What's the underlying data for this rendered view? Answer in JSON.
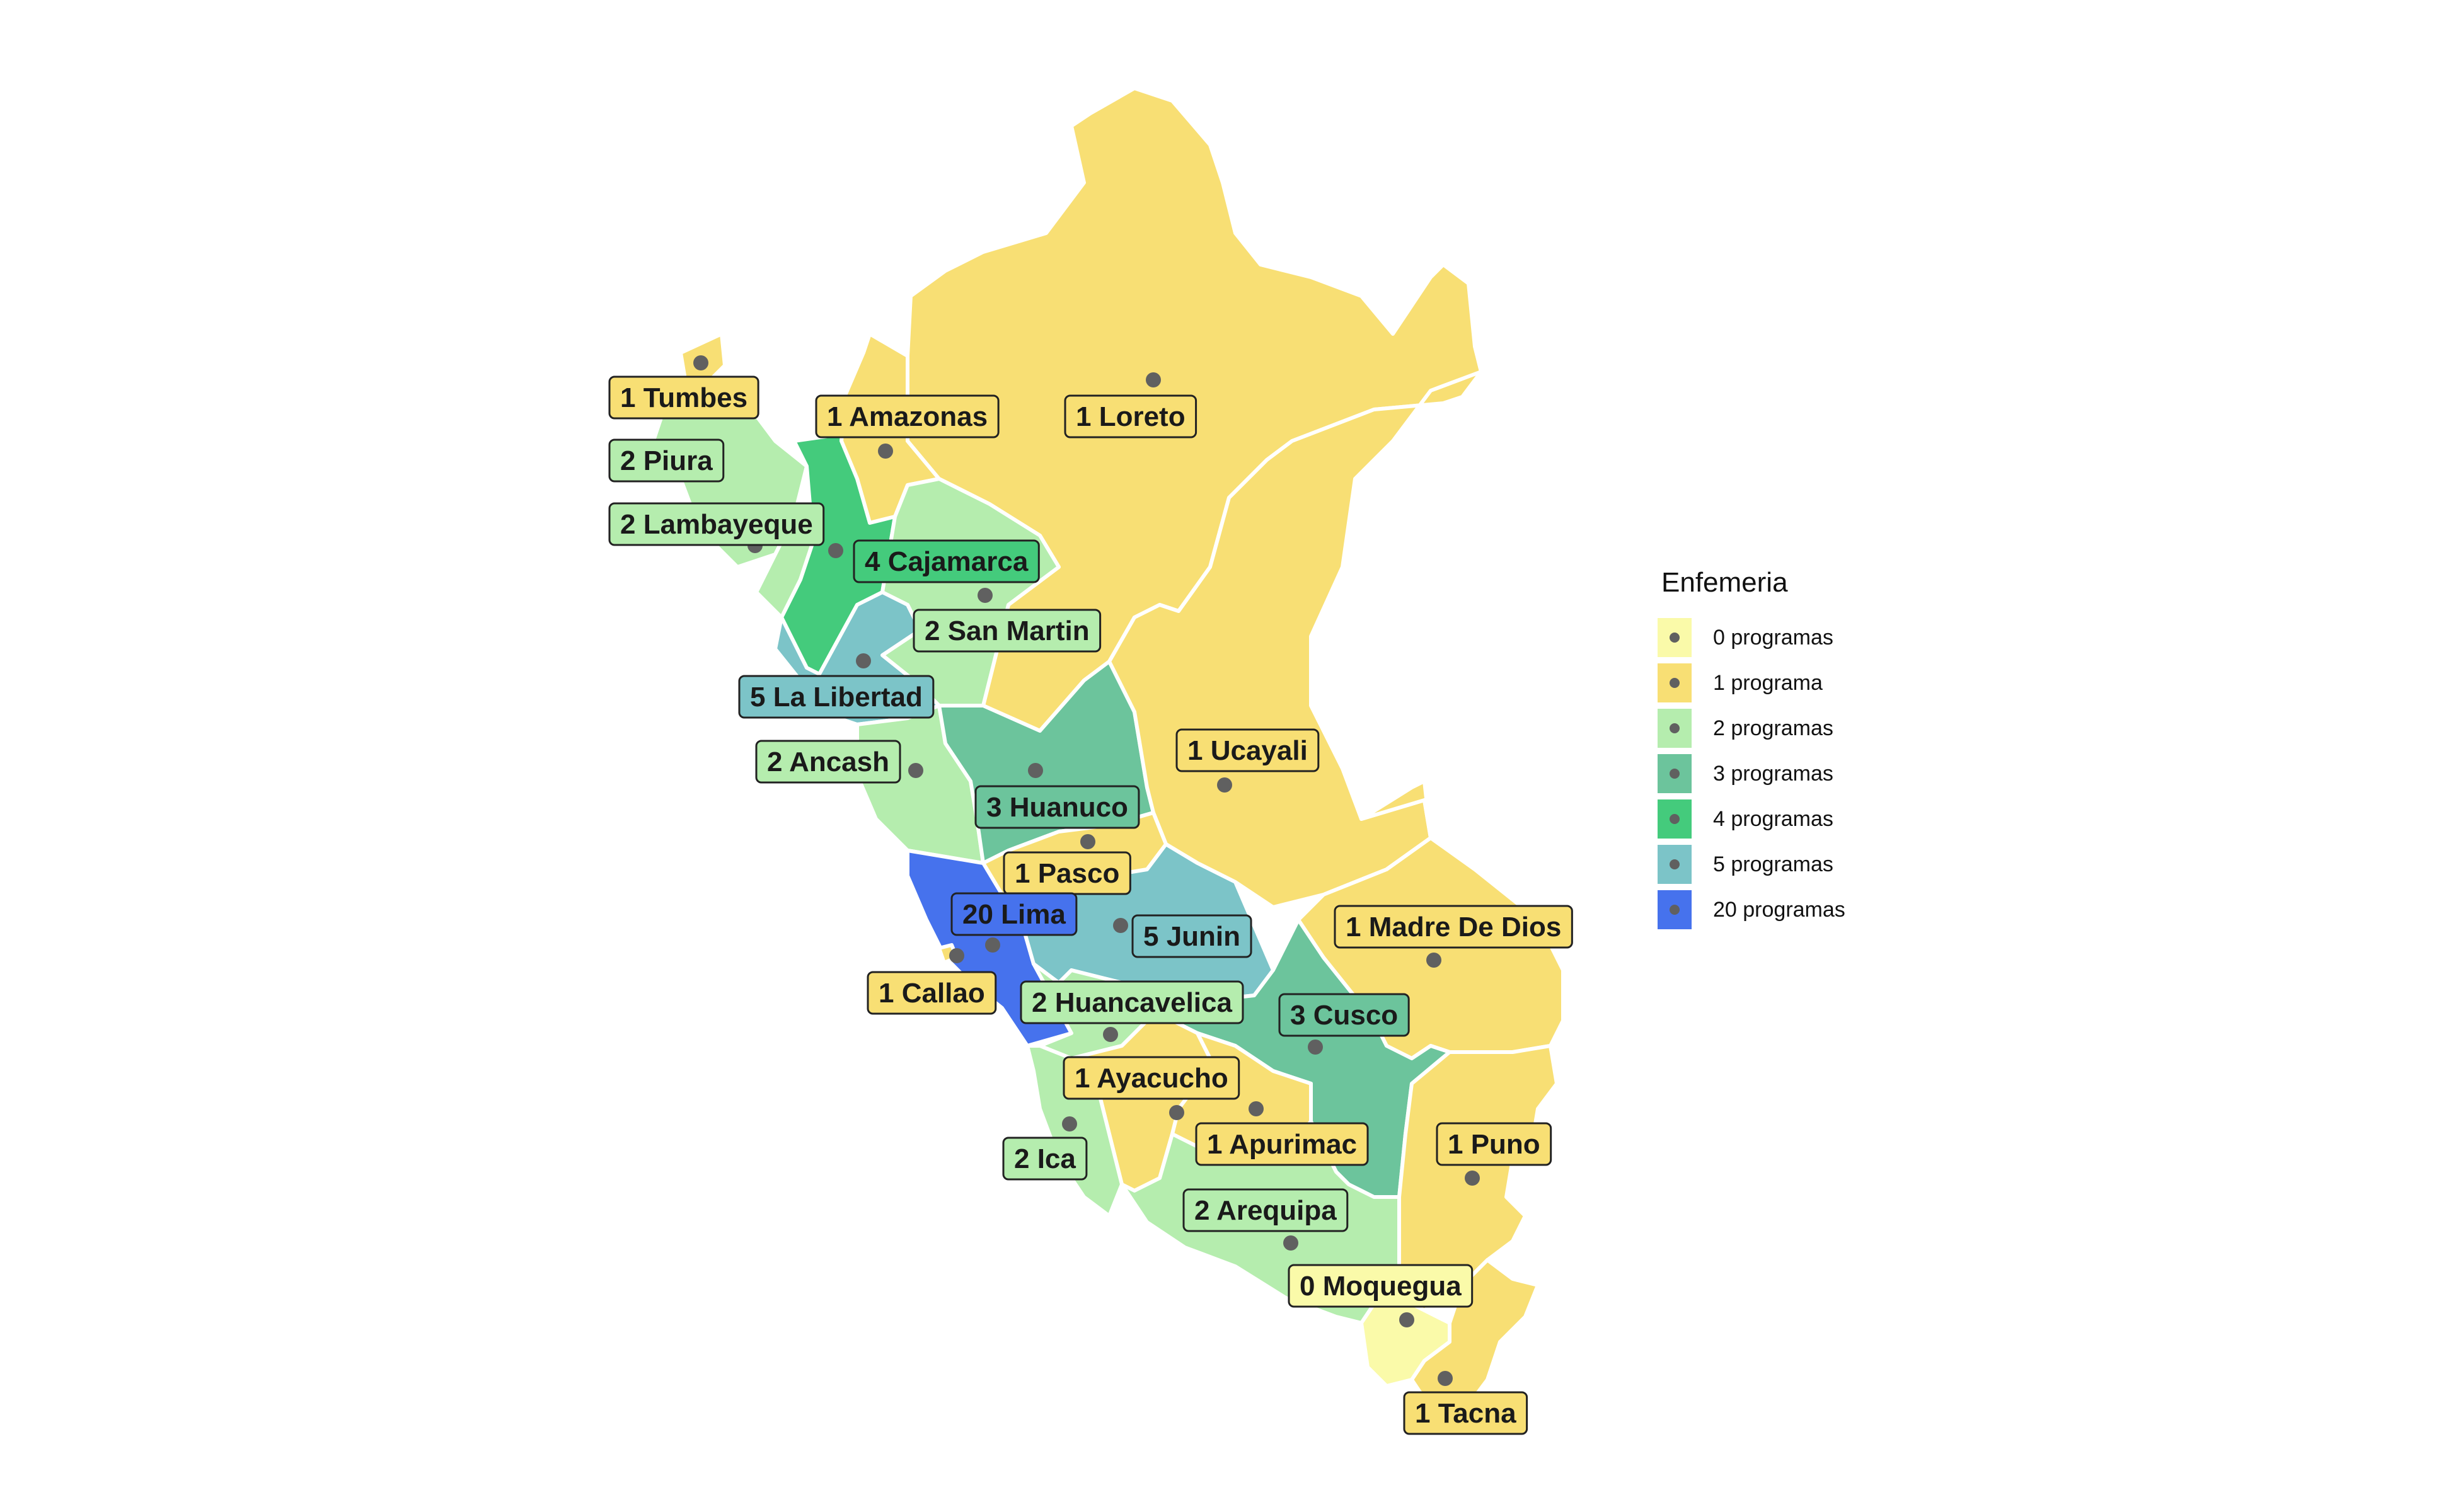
{
  "legend": {
    "title": "Enfemeria",
    "items": [
      {
        "label": "0 programas",
        "color": "#FAFAA9"
      },
      {
        "label": "1 programa",
        "color": "#F8DF74"
      },
      {
        "label": "2 programas",
        "color": "#B5EDAE"
      },
      {
        "label": "3 programas",
        "color": "#6CC49C"
      },
      {
        "label": "4 programas",
        "color": "#44CB7C"
      },
      {
        "label": "5 programas",
        "color": "#7CC4C8"
      },
      {
        "label": "20 programas",
        "color": "#4672ED"
      }
    ]
  },
  "regions": [
    {
      "id": "tumbes",
      "label": "1 Tumbes",
      "programas": 1
    },
    {
      "id": "piura",
      "label": "2 Piura",
      "programas": 2
    },
    {
      "id": "lambayeque",
      "label": "2 Lambayeque",
      "programas": 2
    },
    {
      "id": "amazonas",
      "label": "1 Amazonas",
      "programas": 1
    },
    {
      "id": "loreto",
      "label": "1 Loreto",
      "programas": 1
    },
    {
      "id": "cajamarca",
      "label": "4 Cajamarca",
      "programas": 4
    },
    {
      "id": "san-martin",
      "label": "2 San Martin",
      "programas": 2
    },
    {
      "id": "la-libertad",
      "label": "5 La Libertad",
      "programas": 5
    },
    {
      "id": "ancash",
      "label": "2 Ancash",
      "programas": 2
    },
    {
      "id": "huanuco",
      "label": "3 Huanuco",
      "programas": 3
    },
    {
      "id": "ucayali",
      "label": "1 Ucayali",
      "programas": 1
    },
    {
      "id": "pasco",
      "label": "1 Pasco",
      "programas": 1
    },
    {
      "id": "lima",
      "label": "20 Lima",
      "programas": 20
    },
    {
      "id": "junin",
      "label": "5 Junin",
      "programas": 5
    },
    {
      "id": "madre-de-dios",
      "label": "1 Madre De Dios",
      "programas": 1
    },
    {
      "id": "callao",
      "label": "1 Callao",
      "programas": 1
    },
    {
      "id": "huancavelica",
      "label": "2 Huancavelica",
      "programas": 2
    },
    {
      "id": "cusco",
      "label": "3 Cusco",
      "programas": 3
    },
    {
      "id": "ayacucho",
      "label": "1 Ayacucho",
      "programas": 1
    },
    {
      "id": "apurimac",
      "label": "1 Apurimac",
      "programas": 1
    },
    {
      "id": "ica",
      "label": "2 Ica",
      "programas": 2
    },
    {
      "id": "puno",
      "label": "1 Puno",
      "programas": 1
    },
    {
      "id": "arequipa",
      "label": "2 Arequipa",
      "programas": 2
    },
    {
      "id": "moquegua",
      "label": "0 Moquegua",
      "programas": 0
    },
    {
      "id": "tacna",
      "label": "1 Tacna",
      "programas": 1
    }
  ]
}
